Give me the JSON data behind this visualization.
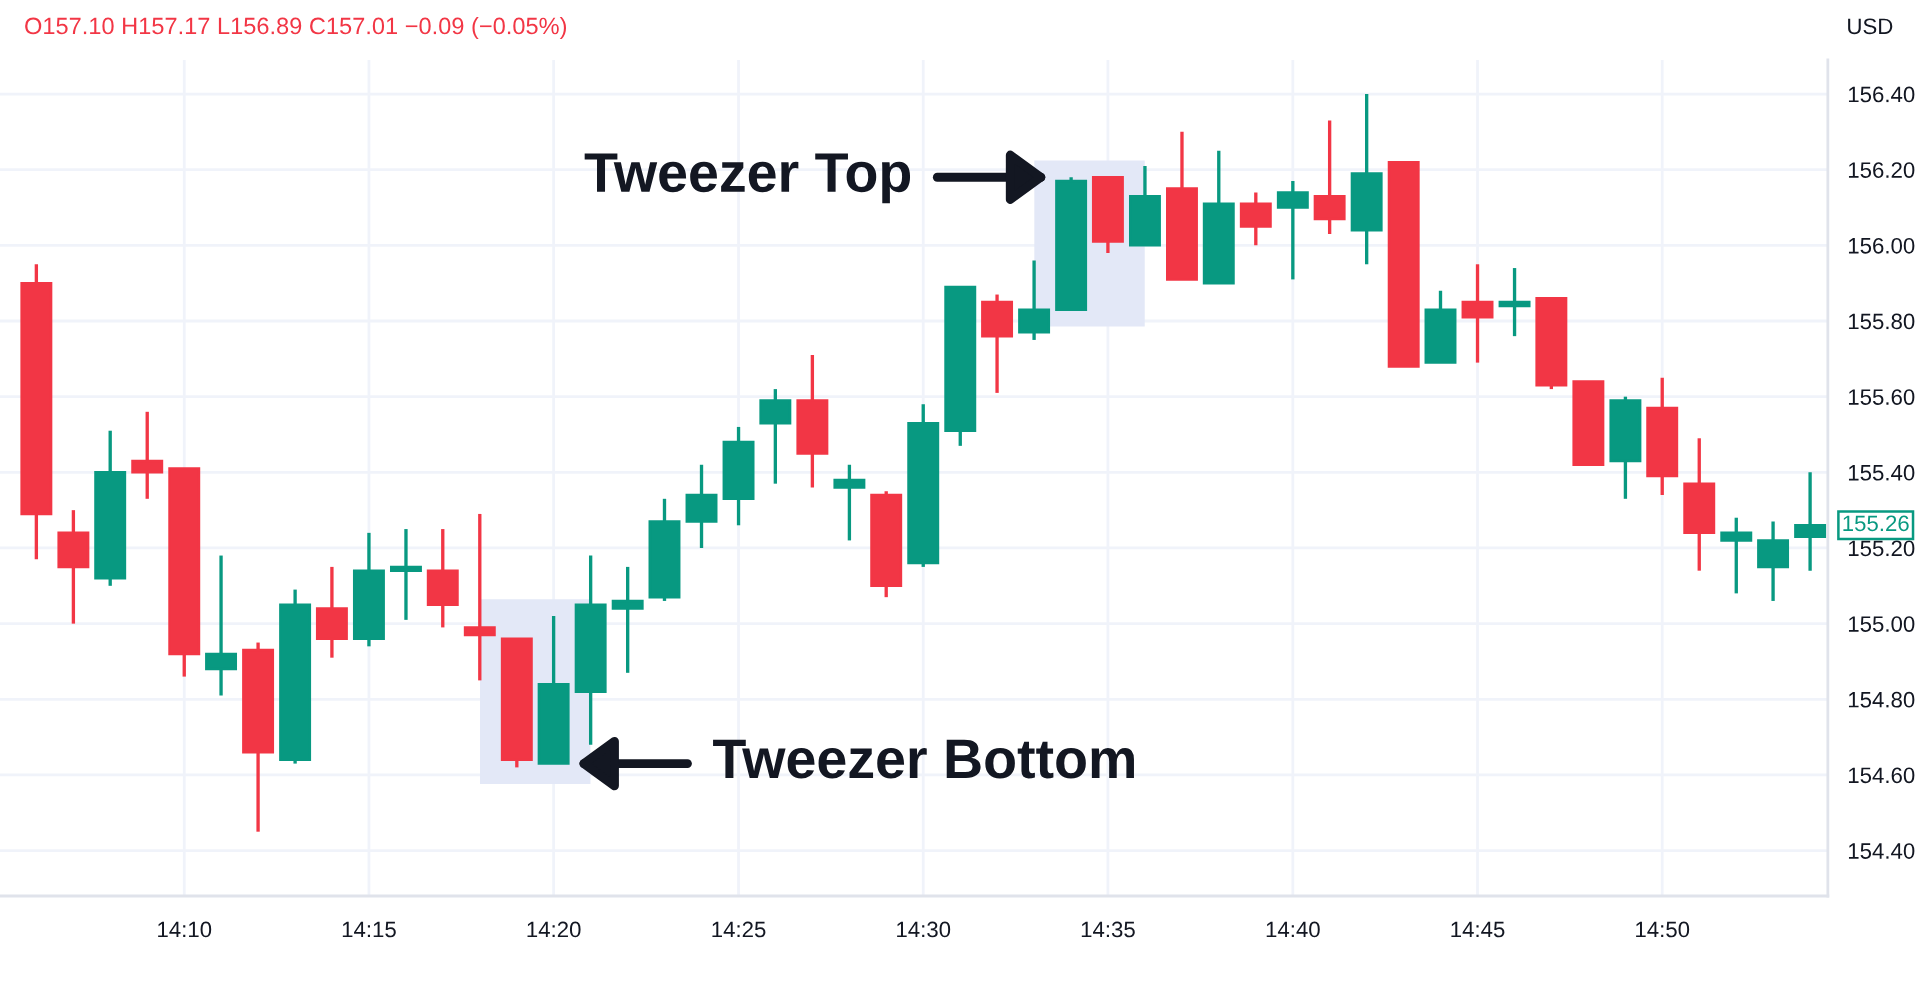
{
  "chart_data": {
    "type": "candlestick",
    "title": "O157.10 H157.17 L156.89 C157.01 −0.09 (−0.05%)",
    "ylabel": "USD",
    "x": [
      14.1,
      14.1167,
      14.1333,
      14.15,
      14.1667,
      14.1833,
      14.2,
      14.2167,
      14.2333,
      14.25,
      14.2667,
      14.2833,
      14.3,
      14.3167,
      14.3333,
      14.35,
      14.3667,
      14.3833,
      14.4,
      14.4167,
      14.4333,
      14.45,
      14.4667,
      14.4833,
      14.5,
      14.5167,
      14.5333,
      14.55,
      14.5667,
      14.5833,
      14.6,
      14.6167,
      14.6333,
      14.65,
      14.6667,
      14.6833,
      14.7,
      14.7167,
      14.7333,
      14.75,
      14.7667,
      14.7833,
      14.8,
      14.8167,
      14.8333,
      14.85,
      14.8667,
      14.8833,
      14.9
    ],
    "ohlc": [
      [
        155.9,
        155.95,
        155.17,
        155.29
      ],
      [
        155.24,
        155.3,
        155.0,
        155.15
      ],
      [
        155.12,
        155.51,
        155.1,
        155.4
      ],
      [
        155.43,
        155.56,
        155.33,
        155.4
      ],
      [
        155.41,
        155.41,
        154.86,
        154.92
      ],
      [
        154.88,
        155.18,
        154.81,
        154.92
      ],
      [
        154.93,
        154.95,
        154.45,
        154.66
      ],
      [
        154.64,
        155.09,
        154.63,
        155.05
      ],
      [
        155.04,
        155.15,
        154.91,
        154.96
      ],
      [
        154.96,
        155.24,
        154.94,
        155.14
      ],
      [
        155.14,
        155.25,
        155.01,
        155.15
      ],
      [
        155.14,
        155.25,
        154.99,
        155.05
      ],
      [
        154.99,
        155.29,
        154.85,
        154.97
      ],
      [
        154.96,
        154.96,
        154.62,
        154.64
      ],
      [
        154.63,
        155.02,
        154.63,
        154.84
      ],
      [
        154.82,
        155.18,
        154.68,
        155.05
      ],
      [
        155.04,
        155.15,
        154.87,
        155.06
      ],
      [
        155.07,
        155.33,
        155.06,
        155.27
      ],
      [
        155.27,
        155.42,
        155.2,
        155.34
      ],
      [
        155.33,
        155.52,
        155.26,
        155.48
      ],
      [
        155.53,
        155.62,
        155.37,
        155.59
      ],
      [
        155.59,
        155.71,
        155.36,
        155.45
      ],
      [
        155.36,
        155.42,
        155.22,
        155.38
      ],
      [
        155.34,
        155.35,
        155.07,
        155.1
      ],
      [
        155.16,
        155.58,
        155.15,
        155.53
      ],
      [
        155.51,
        155.89,
        155.47,
        155.89
      ],
      [
        155.85,
        155.87,
        155.61,
        155.76
      ],
      [
        155.77,
        155.96,
        155.75,
        155.83
      ],
      [
        155.83,
        156.18,
        155.83,
        156.17
      ],
      [
        156.18,
        156.18,
        155.98,
        156.01
      ],
      [
        156.0,
        156.21,
        156.0,
        156.13
      ],
      [
        156.15,
        156.3,
        155.91,
        155.91
      ],
      [
        155.9,
        156.25,
        155.9,
        156.11
      ],
      [
        156.11,
        156.14,
        156.0,
        156.05
      ],
      [
        156.1,
        156.17,
        155.91,
        156.14
      ],
      [
        156.13,
        156.33,
        156.03,
        156.07
      ],
      [
        156.04,
        156.4,
        155.95,
        156.19
      ],
      [
        156.22,
        156.22,
        155.68,
        155.68
      ],
      [
        155.69,
        155.88,
        155.69,
        155.83
      ],
      [
        155.85,
        155.95,
        155.69,
        155.81
      ],
      [
        155.84,
        155.94,
        155.76,
        155.85
      ],
      [
        155.86,
        155.86,
        155.62,
        155.63
      ],
      [
        155.64,
        155.64,
        155.42,
        155.42
      ],
      [
        155.43,
        155.6,
        155.33,
        155.59
      ],
      [
        155.57,
        155.65,
        155.34,
        155.39
      ],
      [
        155.37,
        155.49,
        155.14,
        155.24
      ],
      [
        155.22,
        155.28,
        155.08,
        155.24
      ],
      [
        155.15,
        155.27,
        155.06,
        155.22
      ],
      [
        155.23,
        155.4,
        155.14,
        155.26
      ]
    ],
    "colors": [
      "#f23645",
      "#f23645",
      "#089981",
      "#f23645",
      "#f23645",
      "#089981",
      "#f23645",
      "#089981",
      "#f23645",
      "#089981",
      "#089981",
      "#f23645",
      "#f23645",
      "#f23645",
      "#089981",
      "#089981",
      "#089981",
      "#089981",
      "#089981",
      "#089981",
      "#089981",
      "#f23645",
      "#089981",
      "#f23645",
      "#089981",
      "#089981",
      "#f23645",
      "#089981",
      "#089981",
      "#f23645",
      "#089981",
      "#f23645",
      "#089981",
      "#f23645",
      "#089981",
      "#f23645",
      "#089981",
      "#f23645",
      "#089981",
      "#f23645",
      "#089981",
      "#f23645",
      "#f23645",
      "#089981",
      "#f23645",
      "#f23645",
      "#089981",
      "#089981",
      "#089981"
    ],
    "xlim": [
      14.0836,
      14.908
    ],
    "xticks": [
      {
        "value": 14.1667,
        "label": "14:10"
      },
      {
        "value": 14.25,
        "label": "14:15"
      },
      {
        "value": 14.3333,
        "label": "14:20"
      },
      {
        "value": 14.4167,
        "label": "14:25"
      },
      {
        "value": 14.5,
        "label": "14:30"
      },
      {
        "value": 14.5833,
        "label": "14:35"
      },
      {
        "value": 14.6667,
        "label": "14:40"
      },
      {
        "value": 14.75,
        "label": "14:45"
      },
      {
        "value": 14.8333,
        "label": "14:50"
      }
    ],
    "ylim": [
      154.28,
      156.49
    ],
    "yticks": [
      {
        "value": 154.4,
        "label": "154.40"
      },
      {
        "value": 154.6,
        "label": "154.60"
      },
      {
        "value": 154.8,
        "label": "154.80"
      },
      {
        "value": 155.0,
        "label": "155.00"
      },
      {
        "value": 155.2,
        "label": "155.20"
      },
      {
        "value": 155.4,
        "label": "155.40"
      },
      {
        "value": 155.6,
        "label": "155.60"
      },
      {
        "value": 155.8,
        "label": "155.80"
      },
      {
        "value": 156.0,
        "label": "156.00"
      },
      {
        "value": 156.2,
        "label": "156.20"
      },
      {
        "value": 156.4,
        "label": "156.40"
      }
    ],
    "grid": true,
    "annotations": [
      {
        "text": "Tweezer Top",
        "x": 14.5667,
        "y": 156.18
      },
      {
        "text": "Tweezer Bottom",
        "x": 14.3333,
        "y": 154.63
      },
      {
        "text": "155.26",
        "x": 14.9,
        "y": 155.26
      }
    ]
  }
}
